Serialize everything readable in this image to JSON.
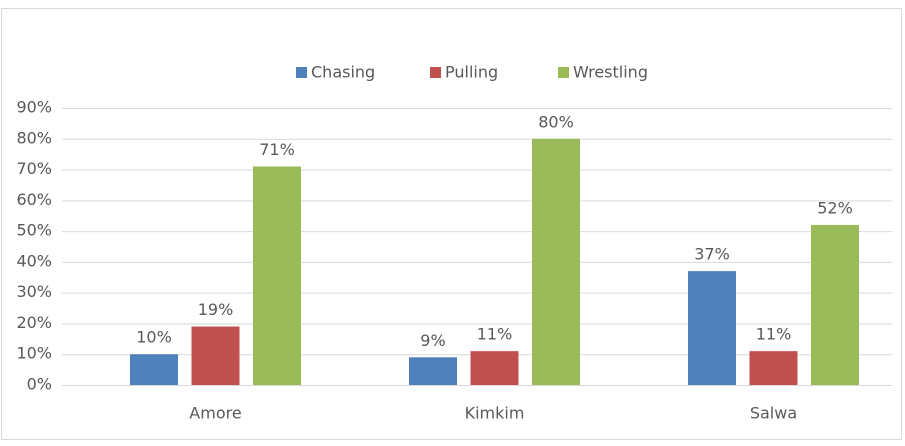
{
  "chart_data": {
    "type": "bar",
    "categories": [
      "Amore",
      "Kimkim",
      "Salwa"
    ],
    "series": [
      {
        "name": "Chasing",
        "color": "#4f81bd",
        "values": [
          10,
          9,
          37
        ],
        "value_labels": [
          "10%",
          "9%",
          "37%"
        ]
      },
      {
        "name": "Pulling",
        "color": "#c0504d",
        "values": [
          19,
          11,
          11
        ],
        "value_labels": [
          "19%",
          "11%",
          "11%"
        ]
      },
      {
        "name": "Wrestling",
        "color": "#9bbb59",
        "values": [
          71,
          80,
          52
        ],
        "value_labels": [
          "71%",
          "80%",
          "52%"
        ]
      }
    ],
    "ylim": [
      0,
      90
    ],
    "yticks": [
      {
        "value": 0,
        "label": "0%"
      },
      {
        "value": 10,
        "label": "10%"
      },
      {
        "value": 20,
        "label": "20%"
      },
      {
        "value": 30,
        "label": "30%"
      },
      {
        "value": 40,
        "label": "40%"
      },
      {
        "value": 50,
        "label": "50%"
      },
      {
        "value": 60,
        "label": "60%"
      },
      {
        "value": 70,
        "label": "70%"
      },
      {
        "value": 80,
        "label": "80%"
      },
      {
        "value": 90,
        "label": "90%"
      }
    ],
    "grid": true,
    "legend": "top"
  }
}
